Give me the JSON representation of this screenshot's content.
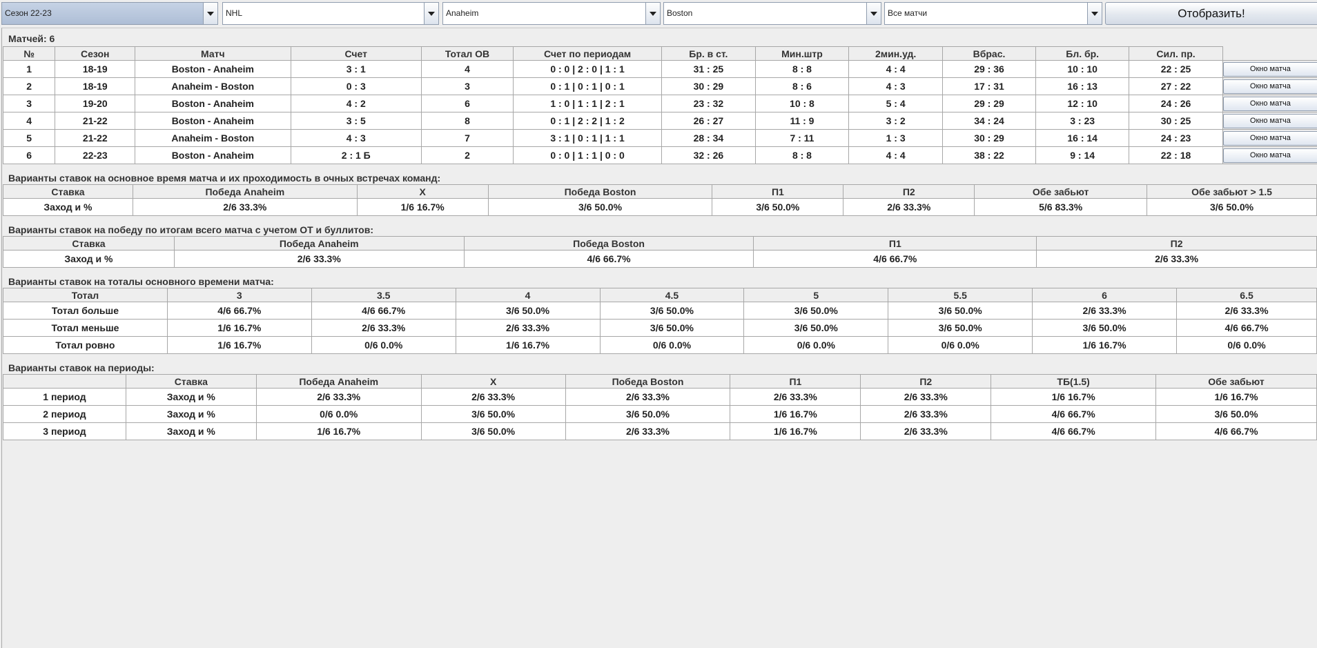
{
  "toolbar": {
    "season": "Сезон 22-23",
    "league": "NHL",
    "team1": "Anaheim",
    "team2": "Boston",
    "filter": "Все матчи",
    "show_label": "Отобразить!"
  },
  "matches": {
    "count_label": "Матчей: 6",
    "headers": [
      "№",
      "Сезон",
      "Матч",
      "Счет",
      "Тотал ОВ",
      "Счет по периодам",
      "Бр. в ст.",
      "Мин.штр",
      "2мин.уд.",
      "Вбрас.",
      "Бл. бр.",
      "Сил. пр."
    ],
    "button_label": "Окно матча",
    "rows": [
      [
        "1",
        "18-19",
        "Boston - Anaheim",
        "3 : 1",
        "4",
        "0 : 0   |   2 : 0   |   1 : 1",
        "31 : 25",
        "8 : 8",
        "4 : 4",
        "29 : 36",
        "10 : 10",
        "22 : 25"
      ],
      [
        "2",
        "18-19",
        "Anaheim - Boston",
        "0 : 3",
        "3",
        "0 : 1   |   0 : 1   |   0 : 1",
        "30 : 29",
        "8 : 6",
        "4 : 3",
        "17 : 31",
        "16 : 13",
        "27 : 22"
      ],
      [
        "3",
        "19-20",
        "Boston - Anaheim",
        "4 : 2",
        "6",
        "1 : 0   |   1 : 1   |   2 : 1",
        "23 : 32",
        "10 : 8",
        "5 : 4",
        "29 : 29",
        "12 : 10",
        "24 : 26"
      ],
      [
        "4",
        "21-22",
        "Boston - Anaheim",
        "3 : 5",
        "8",
        "0 : 1   |   2 : 2   |   1 : 2",
        "26 : 27",
        "11 : 9",
        "3 : 2",
        "34 : 24",
        "3 : 23",
        "30 : 25"
      ],
      [
        "5",
        "21-22",
        "Anaheim - Boston",
        "4 : 3",
        "7",
        "3 : 1   |   0 : 1   |   1 : 1",
        "28 : 34",
        "7 : 11",
        "1 : 3",
        "30 : 29",
        "16 : 14",
        "24 : 23"
      ],
      [
        "6",
        "22-23",
        "Boston - Anaheim",
        "2 : 1 Б",
        "2",
        "0 : 0   |   1 : 1   |   0 : 0",
        "32 : 26",
        "8 : 8",
        "4 : 4",
        "38 : 22",
        "9 : 14",
        "22 : 18"
      ]
    ]
  },
  "main_time": {
    "title": "Варианты ставок на основное время матча и их проходимость в очных встречах команд:",
    "headers": [
      "Ставка",
      "Победа Anaheim",
      "X",
      "Победа Boston",
      "П1",
      "П2",
      "Обе забьют",
      "Обе забьют > 1.5"
    ],
    "row": [
      "Заход и %",
      "2/6  33.3%",
      "1/6  16.7%",
      "3/6  50.0%",
      "3/6  50.0%",
      "2/6  33.3%",
      "5/6  83.3%",
      "3/6  50.0%"
    ]
  },
  "full_match": {
    "title": "Варианты ставок на победу по итогам всего матча с учетом ОТ и буллитов:",
    "headers": [
      "Ставка",
      "Победа Anaheim",
      "Победа Boston",
      "П1",
      "П2"
    ],
    "row": [
      "Заход и %",
      "2/6  33.3%",
      "4/6  66.7%",
      "4/6  66.7%",
      "2/6  33.3%"
    ]
  },
  "totals": {
    "title": "Варианты ставок на тоталы основного времени матча:",
    "headers": [
      "Тотал",
      "3",
      "3.5",
      "4",
      "4.5",
      "5",
      "5.5",
      "6",
      "6.5"
    ],
    "rows": [
      [
        "Тотал больше",
        "4/6  66.7%",
        "4/6  66.7%",
        "3/6  50.0%",
        "3/6  50.0%",
        "3/6  50.0%",
        "3/6  50.0%",
        "2/6  33.3%",
        "2/6  33.3%"
      ],
      [
        "Тотал меньше",
        "1/6  16.7%",
        "2/6  33.3%",
        "2/6  33.3%",
        "3/6  50.0%",
        "3/6  50.0%",
        "3/6  50.0%",
        "3/6  50.0%",
        "4/6  66.7%"
      ],
      [
        "Тотал ровно",
        "1/6  16.7%",
        "0/6  0.0%",
        "1/6  16.7%",
        "0/6  0.0%",
        "0/6  0.0%",
        "0/6  0.0%",
        "1/6  16.7%",
        "0/6  0.0%"
      ]
    ]
  },
  "periods": {
    "title": "Варианты ставок на периоды:",
    "headers": [
      "",
      "Ставка",
      "Победа Anaheim",
      "X",
      "Победа Boston",
      "П1",
      "П2",
      "ТБ(1.5)",
      "Обе забьют"
    ],
    "rows": [
      [
        "1 период",
        "Заход и %",
        "2/6  33.3%",
        "2/6  33.3%",
        "2/6  33.3%",
        "2/6  33.3%",
        "2/6  33.3%",
        "1/6  16.7%",
        "1/6  16.7%"
      ],
      [
        "2 период",
        "Заход и %",
        "0/6  0.0%",
        "3/6  50.0%",
        "3/6  50.0%",
        "1/6  16.7%",
        "2/6  33.3%",
        "4/6  66.7%",
        "3/6  50.0%"
      ],
      [
        "3 период",
        "Заход и %",
        "1/6  16.7%",
        "3/6  50.0%",
        "2/6  33.3%",
        "1/6  16.7%",
        "2/6  33.3%",
        "4/6  66.7%",
        "4/6  66.7%"
      ]
    ]
  }
}
